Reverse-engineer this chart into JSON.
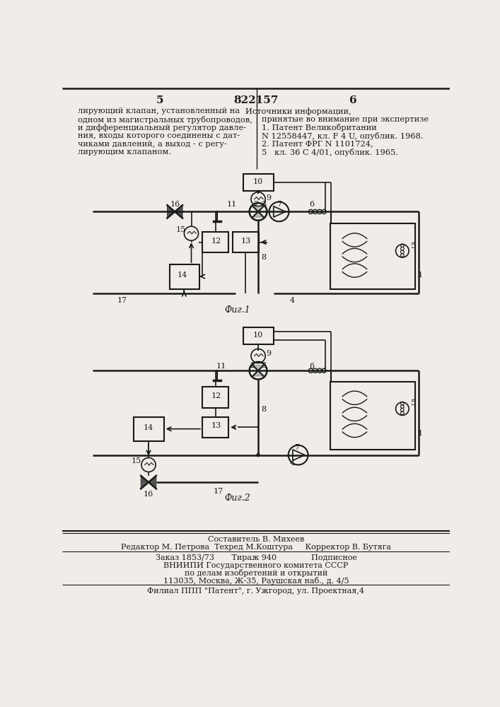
{
  "page_number_left": "5",
  "page_number_center": "822157",
  "page_number_right": "6",
  "left_text_lines": [
    "лирующий клапан, установленный на",
    "одном из магистральных трубопроводов,",
    "и дифференциальный регулятор давле-",
    "ния, входы которого соединены с дат-",
    "чиками давлений, а выход - с регу-",
    "лирующим клапаном."
  ],
  "right_text_lines": [
    "Источники информации,",
    "принятые во внимание при экспертизе",
    "1. Патент Великобритании",
    "N 12558447, кл. F 4 U, опублик. 1968.",
    "2. Патент ФРГ N 1101724,",
    "5   кл. 36 С 4/01, опублик. 1965."
  ],
  "fig1_label": "Фиг.1",
  "fig2_label": "Фиг.2",
  "footer_line1": "Составитель В. Михеев",
  "footer_line2": "Редактор М. Петрова  Техред М.Коштура     Корректор В. Бутяга",
  "footer_line3": "Заказ 1853/73       Тираж 940              Подписное",
  "footer_line4": "ВНИИПИ Государственного комитета СССР",
  "footer_line5": "по делам изобретений и открытий",
  "footer_line6": "113035, Москва, Ж-35, Раушская наб., д. 4/5",
  "footer_line7": "Филиал ППП \"Патент\", г. Ужгород, ул. Проектная,4",
  "bg_color": "#f0ede8"
}
